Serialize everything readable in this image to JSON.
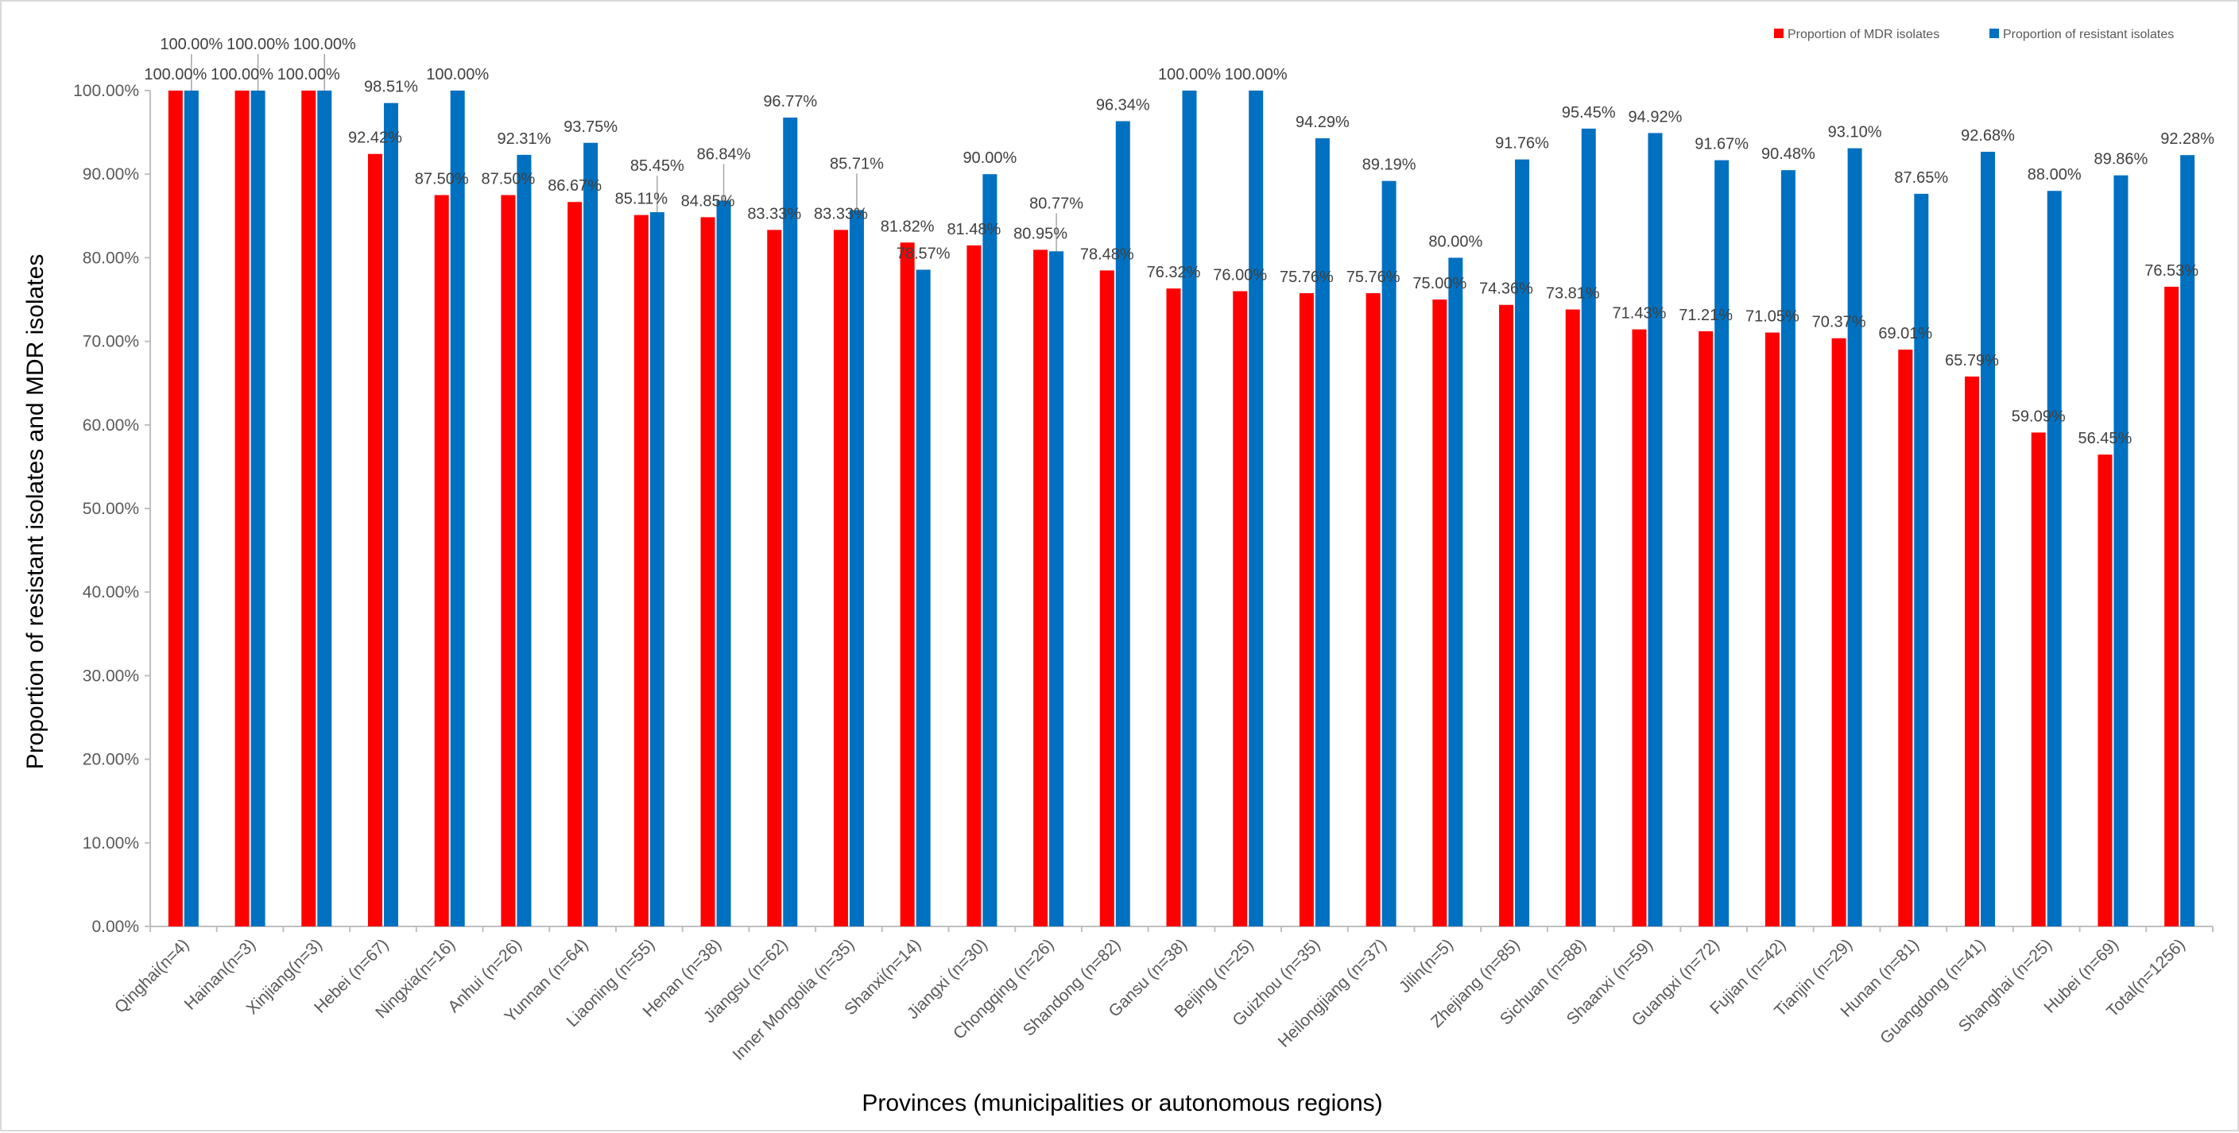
{
  "colors": {
    "mdr": "#ff0000",
    "resistant": "#0070c0",
    "axis": "#bfbfbf",
    "leader": "#a6a6a6"
  },
  "chart_data": {
    "type": "bar",
    "xlabel": "Provinces (municipalities or autonomous regions)",
    "ylabel": "Proportion of resistant isolates and MDR isolates",
    "ylim": [
      0,
      100
    ],
    "y_ticks": [
      "0.00%",
      "10.00%",
      "20.00%",
      "30.00%",
      "40.00%",
      "50.00%",
      "60.00%",
      "70.00%",
      "80.00%",
      "90.00%",
      "100.00%"
    ],
    "grid": false,
    "legend_position": "top-right",
    "categories": [
      "Qinghai(n=4)",
      "Hainan(n=3)",
      "Xinjiang(n=3)",
      "Hebei (n=67)",
      "Ningxia(n=16)",
      "Anhui (n=26)",
      "Yunnan (n=64)",
      "Liaoning (n=55)",
      "Henan (n=38)",
      "Jiangsu (n=62)",
      "Inner Mongolia (n=35)",
      "Shanxi(n=14)",
      "Jiangxi (n=30)",
      "Chongqing (n=26)",
      "Shandong (n=82)",
      "Gansu (n=38)",
      "Beijing (n=25)",
      "Guizhou (n=35)",
      "Heilongjiang (n=37)",
      "Jilin(n=5)",
      "Zhejiang (n=85)",
      "Sichuan (n=88)",
      "Shaanxi (n=59)",
      "Guangxi (n=72)",
      "Fujian (n=42)",
      "Tianjin (n=29)",
      "Hunan (n=81)",
      "Guangdong (n=41)",
      "Shanghai (n=25)",
      "Hubei (n=69)",
      "Total(n=1256)"
    ],
    "series": [
      {
        "name": "Proportion of MDR isolates",
        "values": [
          100,
          100,
          100,
          92.42,
          87.5,
          87.5,
          86.67,
          85.11,
          84.85,
          83.33,
          83.33,
          81.82,
          81.48,
          80.95,
          78.48,
          76.32,
          76,
          75.76,
          75.76,
          75,
          74.36,
          73.81,
          71.43,
          71.21,
          71.05,
          70.37,
          69.01,
          65.79,
          59.09,
          56.45,
          76.53
        ],
        "labels": [
          "100.00%",
          "100.00%",
          "100.00%",
          "92.42%",
          "87.50%",
          "87.50%",
          "86.67%",
          "85.11%",
          "84.85%",
          "83.33%",
          "83.33%",
          "81.82%",
          "81.48%",
          "80.95%",
          "78.48%",
          "76.32%",
          "76.00%",
          "75.76%",
          "75.76%",
          "75.00%",
          "74.36%",
          "73.81%",
          "71.43%",
          "71.21%",
          "71.05%",
          "70.37%",
          "69.01%",
          "65.79%",
          "59.09%",
          "56.45%",
          "76.53%"
        ]
      },
      {
        "name": "Proportion of resistant isolates",
        "values": [
          100,
          100,
          100,
          98.51,
          100,
          92.31,
          93.75,
          85.45,
          86.84,
          96.77,
          85.71,
          78.57,
          90,
          80.77,
          96.34,
          100,
          100,
          94.29,
          89.19,
          80,
          91.76,
          95.45,
          94.92,
          91.67,
          90.48,
          93.1,
          87.65,
          92.68,
          88,
          89.86,
          92.28
        ],
        "labels": [
          "100.00%",
          "100.00%",
          "100.00%",
          "98.51%",
          "100.00%",
          "92.31%",
          "93.75%",
          "85.45%",
          "86.84%",
          "96.77%",
          "85.71%",
          "78.57%",
          "90.00%",
          "80.77%",
          "96.34%",
          "100.00%",
          "100.00%",
          "94.29%",
          "89.19%",
          "80.00%",
          "91.76%",
          "95.45%",
          "94.92%",
          "91.67%",
          "90.48%",
          "93.10%",
          "87.65%",
          "92.68%",
          "88.00%",
          "89.86%",
          "92.28%"
        ]
      }
    ]
  }
}
